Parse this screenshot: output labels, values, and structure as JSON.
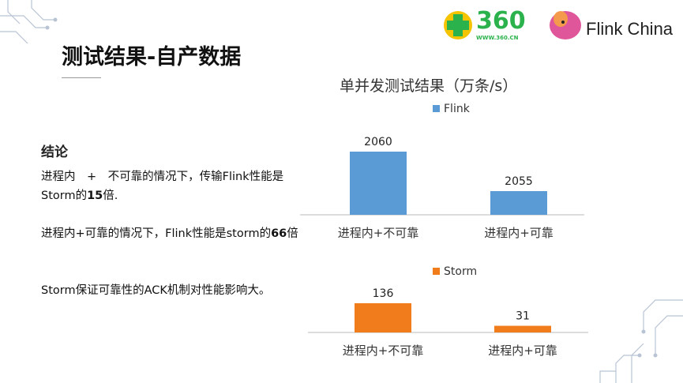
{
  "slide": {
    "title": "测试结果-自产数据",
    "conclusion_heading": "结论",
    "paragraphs": [
      {
        "pre": "进程内　+　不可靠的情况下，传输Flink性能是Storm的",
        "bold": "15",
        "post": "倍."
      },
      {
        "pre": "进程内+可靠的情况下，Flink性能是storm的",
        "bold": "66",
        "post": "倍"
      },
      {
        "pre": "Storm保证可靠性的ACK机制对性能影响大。",
        "bold": "",
        "post": ""
      }
    ],
    "logos": {
      "left": "360",
      "left_sub": "WWW.360.CN",
      "right": "Flink China"
    }
  },
  "colors": {
    "flink": "#5b9bd5",
    "storm": "#f07c1c",
    "logo_green": "#2bb24c"
  },
  "chart_data": [
    {
      "type": "bar",
      "title": "单并发测试结果（万条/s）",
      "categories": [
        "进程内+不可靠",
        "进程内+可靠"
      ],
      "series": [
        {
          "name": "Flink",
          "values": [
            2060,
            2055
          ]
        }
      ],
      "ylim": [
        2052,
        2062
      ],
      "legend": "top",
      "grid": false
    },
    {
      "type": "bar",
      "title": "",
      "categories": [
        "进程内+不可靠",
        "进程内+可靠"
      ],
      "series": [
        {
          "name": "Storm",
          "values": [
            136,
            31
          ]
        }
      ],
      "ylim": [
        0,
        180
      ],
      "legend": "top",
      "grid": false
    }
  ]
}
